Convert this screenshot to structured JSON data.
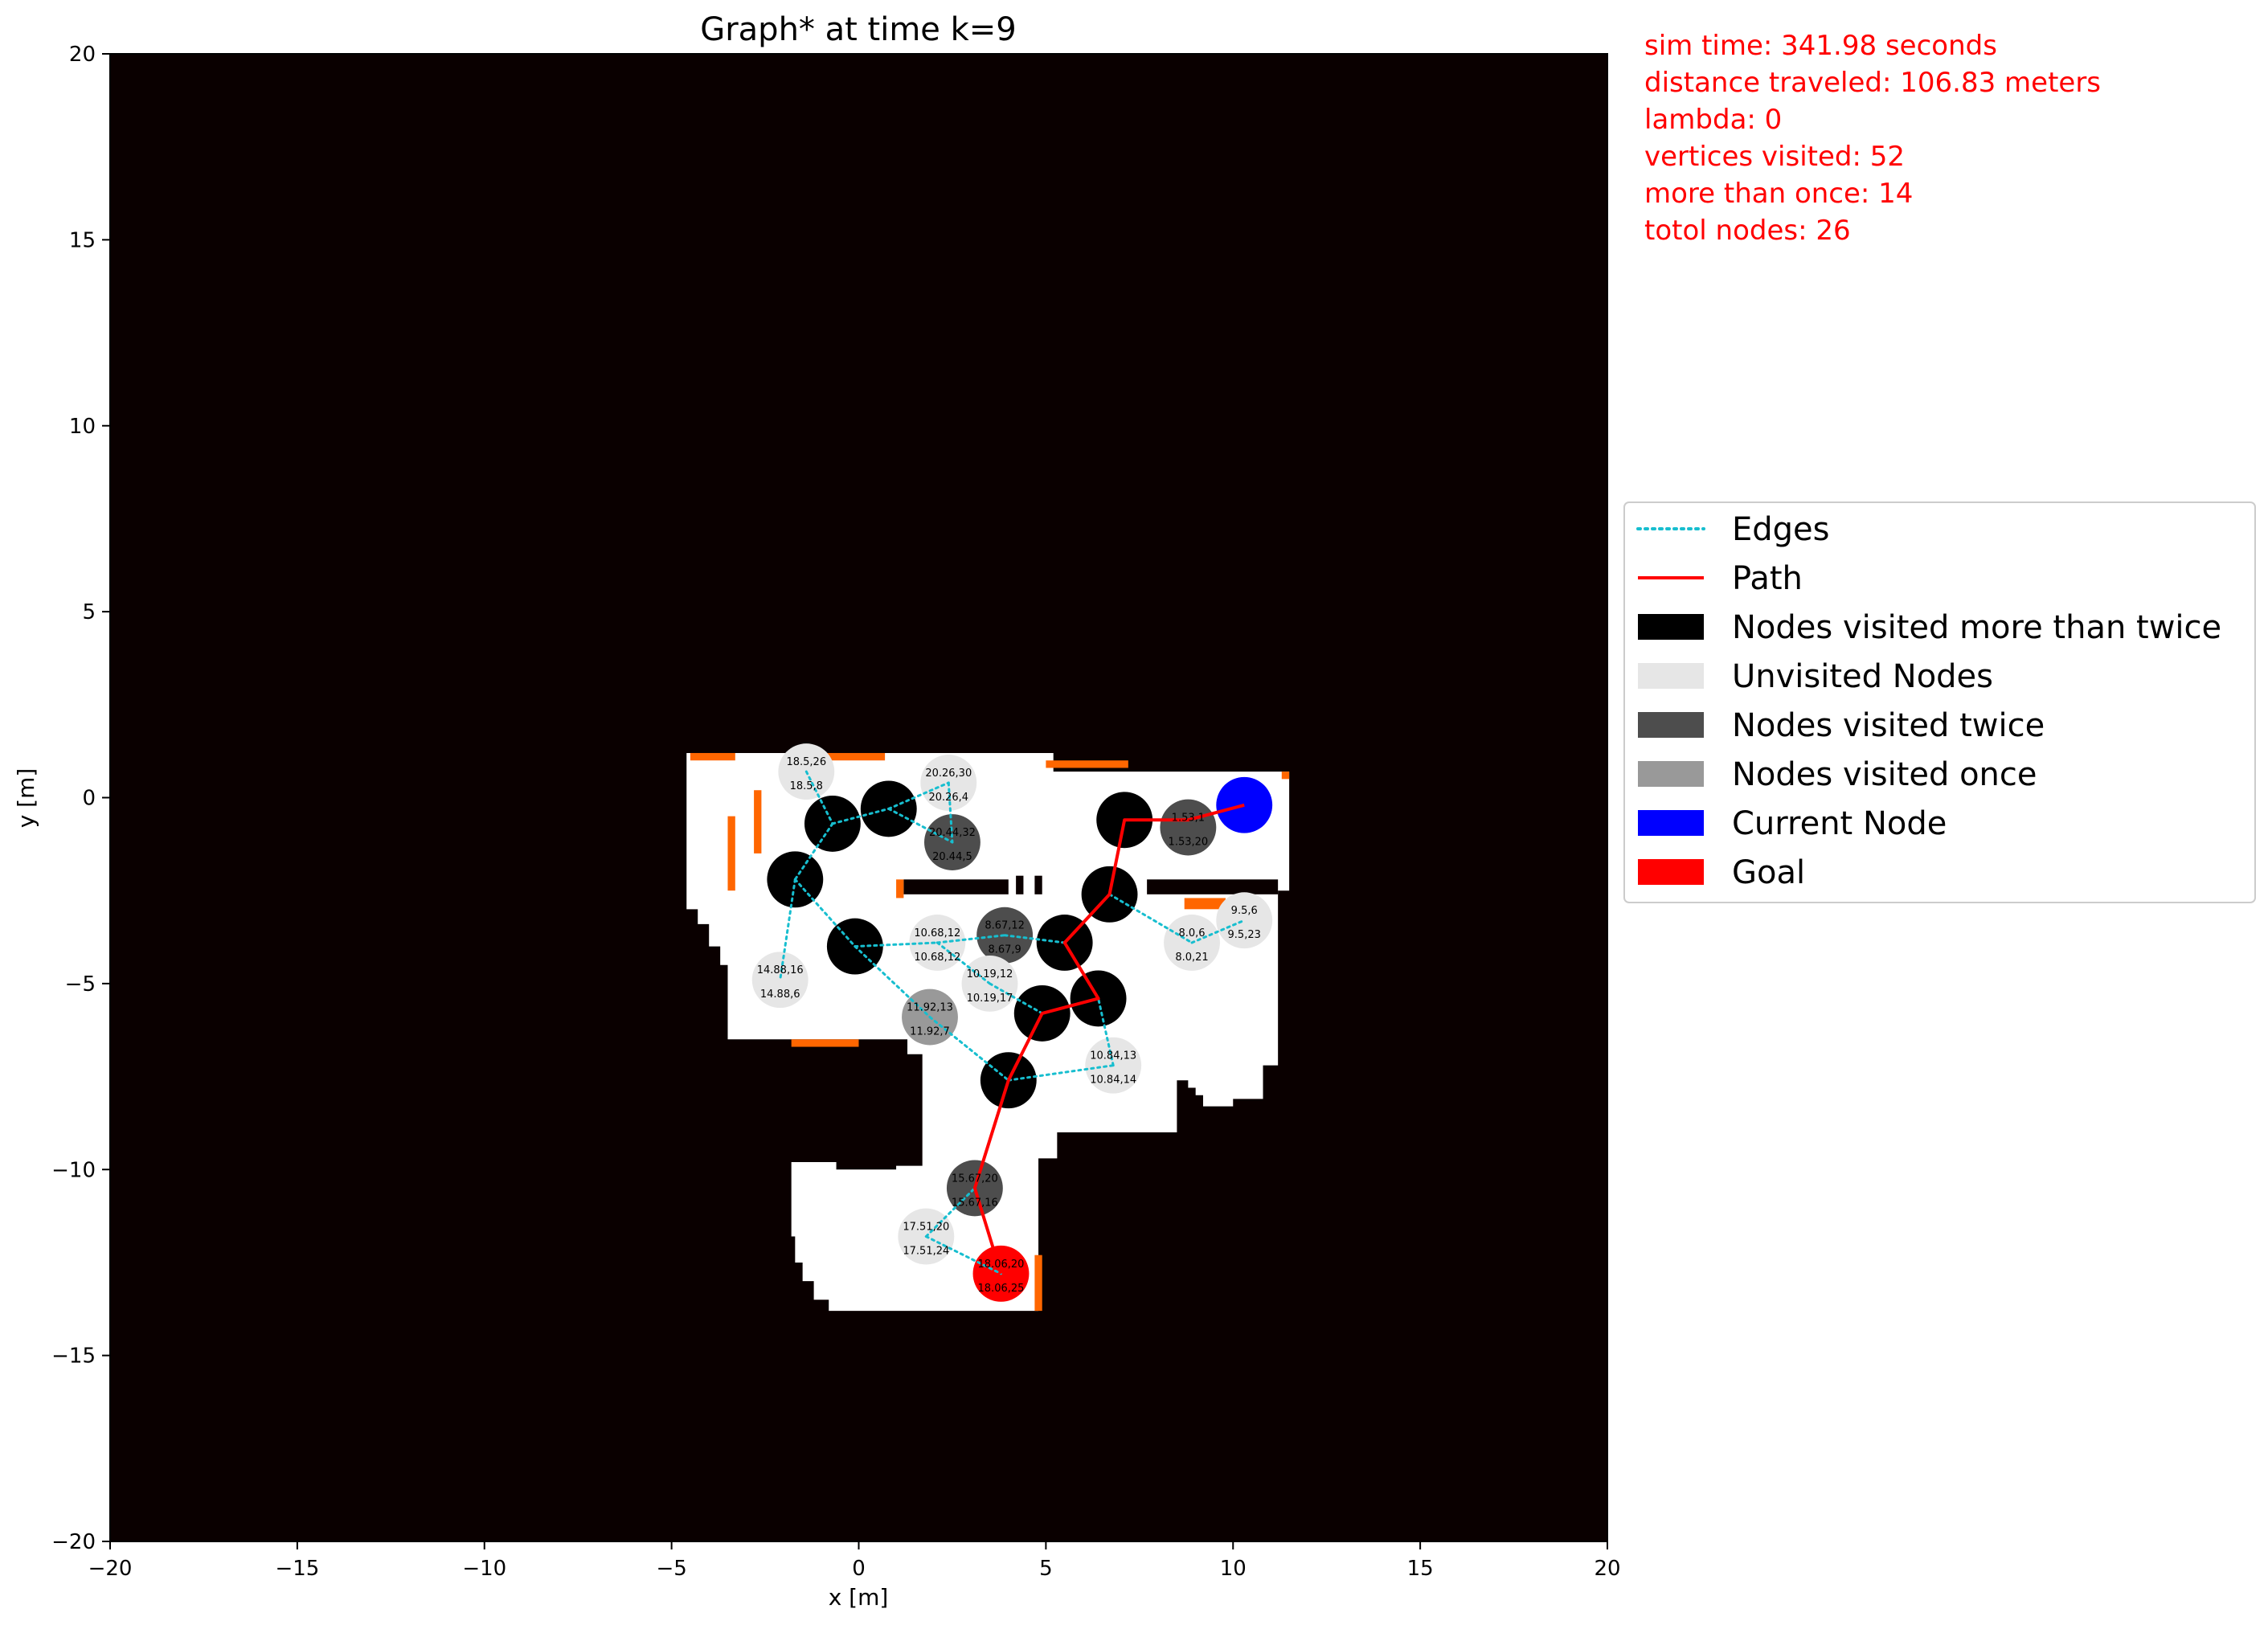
{
  "chart_data": {
    "type": "scatter",
    "title": "Graph* at time k=9",
    "xlabel": "x [m]",
    "ylabel": "y [m]",
    "xlim": [
      -20,
      20
    ],
    "ylim": [
      -20,
      20
    ],
    "xticks": [
      "−20",
      "−15",
      "−10",
      "−5",
      "0",
      "5",
      "10",
      "15",
      "20"
    ],
    "yticks": [
      "−20",
      "−15",
      "−10",
      "−5",
      "0",
      "5",
      "10",
      "15",
      "20"
    ],
    "grid": false,
    "legend_position": "right",
    "info": [
      "sim time: 341.98 seconds",
      "distance traveled: 106.83 meters",
      "lambda: 0",
      "vertices visited: 52",
      "more than once: 14",
      "totol nodes: 26"
    ],
    "legend": [
      {
        "label": "Edges",
        "kind": "dotted-line",
        "color": "#17becf"
      },
      {
        "label": "Path",
        "kind": "line",
        "color": "#ff0000"
      },
      {
        "label": "Nodes visited more than twice",
        "kind": "patch",
        "color": "#000000"
      },
      {
        "label": "Unvisited Nodes",
        "kind": "patch",
        "color": "#e6e6e6"
      },
      {
        "label": "Nodes visited twice",
        "kind": "patch",
        "color": "#4d4d4d"
      },
      {
        "label": "Nodes visited once",
        "kind": "patch",
        "color": "#999999"
      },
      {
        "label": "Current Node",
        "kind": "patch",
        "color": "#0000ff"
      },
      {
        "label": "Goal",
        "kind": "patch",
        "color": "#ff0000"
      }
    ],
    "colors": {
      "background": "#0a0000",
      "free_space": "#ffffff",
      "frontier": "#ff6600",
      "edge": "#17becf",
      "path": "#ff0000"
    },
    "free_space_polygons": [
      [
        [
          -4.5,
          1.2
        ],
        [
          5.2,
          1.2
        ],
        [
          5.2,
          0.7
        ],
        [
          11.5,
          0.7
        ],
        [
          11.5,
          -2.5
        ],
        [
          11.2,
          -2.5
        ],
        [
          11.2,
          -7.2
        ],
        [
          10.8,
          -7.2
        ],
        [
          10.8,
          -8.1
        ],
        [
          10.0,
          -8.1
        ],
        [
          10.0,
          -8.3
        ],
        [
          9.2,
          -8.3
        ],
        [
          9.2,
          -8.0
        ],
        [
          9.0,
          -8.0
        ],
        [
          9.0,
          -7.8
        ],
        [
          8.8,
          -7.8
        ],
        [
          8.8,
          -7.6
        ],
        [
          8.5,
          -7.6
        ],
        [
          8.5,
          -9.0
        ],
        [
          5.3,
          -9.0
        ],
        [
          5.3,
          -9.7
        ],
        [
          4.8,
          -9.7
        ],
        [
          4.8,
          -13.8
        ],
        [
          -0.8,
          -13.8
        ],
        [
          -0.8,
          -13.5
        ],
        [
          -1.2,
          -13.5
        ],
        [
          -1.2,
          -13.0
        ],
        [
          -1.5,
          -13.0
        ],
        [
          -1.5,
          -12.5
        ],
        [
          -1.7,
          -12.5
        ],
        [
          -1.7,
          -11.8
        ],
        [
          -1.8,
          -11.8
        ],
        [
          -1.8,
          -9.8
        ],
        [
          -0.6,
          -9.8
        ],
        [
          -0.6,
          -10.0
        ],
        [
          1.0,
          -10.0
        ],
        [
          1.0,
          -9.9
        ],
        [
          1.7,
          -9.9
        ],
        [
          1.7,
          -6.9
        ],
        [
          1.3,
          -6.9
        ],
        [
          1.3,
          -6.5
        ],
        [
          -3.5,
          -6.5
        ],
        [
          -3.5,
          -4.5
        ],
        [
          -3.7,
          -4.5
        ],
        [
          -3.7,
          -4.0
        ],
        [
          -4.0,
          -4.0
        ],
        [
          -4.0,
          -3.4
        ],
        [
          -4.3,
          -3.4
        ],
        [
          -4.3,
          -3.0
        ],
        [
          -4.6,
          -3.0
        ],
        [
          -4.6,
          1.2
        ]
      ]
    ],
    "obstacle_rects": [
      [
        [
          1.2,
          -2.2
        ],
        [
          4.0,
          -2.6
        ]
      ],
      [
        [
          7.7,
          -2.2
        ],
        [
          11.2,
          -2.6
        ]
      ],
      [
        [
          4.2,
          -2.1
        ],
        [
          4.4,
          -2.6
        ]
      ],
      [
        [
          4.7,
          -2.1
        ],
        [
          4.9,
          -2.6
        ]
      ]
    ],
    "frontier_rects": [
      [
        [
          -4.5,
          1.2
        ],
        [
          -3.3,
          1.0
        ]
      ],
      [
        [
          -1.4,
          1.2
        ],
        [
          0.7,
          1.0
        ]
      ],
      [
        [
          5.0,
          1.0
        ],
        [
          7.2,
          0.8
        ]
      ],
      [
        [
          11.3,
          0.7
        ],
        [
          11.5,
          0.5
        ]
      ],
      [
        [
          -2.8,
          0.2
        ],
        [
          -2.6,
          -1.5
        ]
      ],
      [
        [
          -3.5,
          -0.5
        ],
        [
          -3.3,
          -2.5
        ]
      ],
      [
        [
          -1.8,
          -6.5
        ],
        [
          0.0,
          -6.7
        ]
      ],
      [
        [
          1.0,
          -2.2
        ],
        [
          1.2,
          -2.7
        ]
      ],
      [
        [
          8.7,
          -2.7
        ],
        [
          9.8,
          -3.0
        ]
      ],
      [
        [
          4.7,
          -12.3
        ],
        [
          4.9,
          -13.8
        ]
      ]
    ],
    "nodes": [
      {
        "x": -1.4,
        "y": 0.7,
        "status": "unvisited",
        "label_top": "18.5,26",
        "label_bottom": "18.5,8"
      },
      {
        "x": 2.4,
        "y": 0.4,
        "status": "unvisited",
        "label_top": "20.26,30",
        "label_bottom": "20.26,4"
      },
      {
        "x": 2.5,
        "y": -1.2,
        "status": "twice",
        "label_top": "20.44,32",
        "label_bottom": "20.44,5"
      },
      {
        "x": -0.7,
        "y": -0.7,
        "status": "more_than_twice",
        "label_top": "",
        "label_bottom": ""
      },
      {
        "x": 0.8,
        "y": -0.3,
        "status": "more_than_twice",
        "label_top": "",
        "label_bottom": ""
      },
      {
        "x": -1.7,
        "y": -2.2,
        "status": "more_than_twice",
        "label_top": "",
        "label_bottom": ""
      },
      {
        "x": -0.1,
        "y": -4.0,
        "status": "more_than_twice",
        "label_top": "",
        "label_bottom": ""
      },
      {
        "x": -2.1,
        "y": -4.9,
        "status": "unvisited",
        "label_top": "14.88,16",
        "label_bottom": "14.88,6"
      },
      {
        "x": 2.1,
        "y": -3.9,
        "status": "unvisited",
        "label_top": "10.68,12",
        "label_bottom": "10.68,12"
      },
      {
        "x": 3.9,
        "y": -3.7,
        "status": "twice",
        "label_top": "8.67,12",
        "label_bottom": "8.67,9"
      },
      {
        "x": 3.5,
        "y": -5.0,
        "status": "unvisited",
        "label_top": "10.19,12",
        "label_bottom": "10.19,17"
      },
      {
        "x": 1.9,
        "y": -5.9,
        "status": "once",
        "label_top": "11.92,13",
        "label_bottom": "11.92,7"
      },
      {
        "x": 5.5,
        "y": -3.9,
        "status": "more_than_twice",
        "label_top": "",
        "label_bottom": ""
      },
      {
        "x": 4.9,
        "y": -5.8,
        "status": "more_than_twice",
        "label_top": "",
        "label_bottom": ""
      },
      {
        "x": 6.4,
        "y": -5.4,
        "status": "more_than_twice",
        "label_top": "",
        "label_bottom": ""
      },
      {
        "x": 6.7,
        "y": -2.6,
        "status": "more_than_twice",
        "label_top": "",
        "label_bottom": ""
      },
      {
        "x": 7.1,
        "y": -0.6,
        "status": "more_than_twice",
        "label_top": "",
        "label_bottom": ""
      },
      {
        "x": 8.8,
        "y": -0.8,
        "status": "twice",
        "label_top": "1.53,1",
        "label_bottom": "1.53,20"
      },
      {
        "x": 8.9,
        "y": -3.9,
        "status": "unvisited",
        "label_top": "8.0,6",
        "label_bottom": "8.0,21"
      },
      {
        "x": 10.3,
        "y": -3.3,
        "status": "unvisited",
        "label_top": "9.5,6",
        "label_bottom": "9.5,23"
      },
      {
        "x": 6.8,
        "y": -7.2,
        "status": "unvisited",
        "label_top": "10.84,13",
        "label_bottom": "10.84,14"
      },
      {
        "x": 4.0,
        "y": -7.6,
        "status": "more_than_twice",
        "label_top": "",
        "label_bottom": ""
      },
      {
        "x": 3.1,
        "y": -10.5,
        "status": "twice",
        "label_top": "15.67,20",
        "label_bottom": "15.67,16"
      },
      {
        "x": 1.8,
        "y": -11.8,
        "status": "unvisited",
        "label_top": "17.51,20",
        "label_bottom": "17.51,24"
      },
      {
        "x": 3.8,
        "y": -12.8,
        "status": "goal",
        "label_top": "18.06,20",
        "label_bottom": "18.06,25"
      },
      {
        "x": 10.3,
        "y": -0.2,
        "status": "current",
        "label_top": "",
        "label_bottom": ""
      }
    ],
    "edges": [
      [
        [
          -1.4,
          0.7
        ],
        [
          -0.7,
          -0.7
        ]
      ],
      [
        [
          -0.7,
          -0.7
        ],
        [
          0.8,
          -0.3
        ]
      ],
      [
        [
          0.8,
          -0.3
        ],
        [
          2.4,
          0.4
        ]
      ],
      [
        [
          2.4,
          0.4
        ],
        [
          2.5,
          -1.2
        ]
      ],
      [
        [
          0.8,
          -0.3
        ],
        [
          2.5,
          -1.2
        ]
      ],
      [
        [
          -0.7,
          -0.7
        ],
        [
          -1.7,
          -2.2
        ]
      ],
      [
        [
          -1.7,
          -2.2
        ],
        [
          -2.1,
          -4.9
        ]
      ],
      [
        [
          -1.7,
          -2.2
        ],
        [
          -0.1,
          -4.0
        ]
      ],
      [
        [
          -0.1,
          -4.0
        ],
        [
          2.1,
          -3.9
        ]
      ],
      [
        [
          2.1,
          -3.9
        ],
        [
          3.9,
          -3.7
        ]
      ],
      [
        [
          3.9,
          -3.7
        ],
        [
          5.5,
          -3.9
        ]
      ],
      [
        [
          2.1,
          -3.9
        ],
        [
          3.5,
          -5.0
        ]
      ],
      [
        [
          -0.1,
          -4.0
        ],
        [
          1.9,
          -5.9
        ]
      ],
      [
        [
          1.9,
          -5.9
        ],
        [
          4.0,
          -7.6
        ]
      ],
      [
        [
          3.5,
          -5.0
        ],
        [
          4.9,
          -5.8
        ]
      ],
      [
        [
          4.0,
          -7.6
        ],
        [
          6.8,
          -7.2
        ]
      ],
      [
        [
          6.8,
          -7.2
        ],
        [
          6.4,
          -5.4
        ]
      ],
      [
        [
          6.7,
          -2.6
        ],
        [
          8.9,
          -3.9
        ]
      ],
      [
        [
          8.9,
          -3.9
        ],
        [
          10.3,
          -3.3
        ]
      ],
      [
        [
          1.8,
          -11.8
        ],
        [
          3.1,
          -10.5
        ]
      ],
      [
        [
          1.8,
          -11.8
        ],
        [
          3.8,
          -12.8
        ]
      ]
    ],
    "path": [
      [
        3.8,
        -12.8
      ],
      [
        3.1,
        -10.5
      ],
      [
        4.0,
        -7.6
      ],
      [
        4.9,
        -5.8
      ],
      [
        6.4,
        -5.4
      ],
      [
        5.5,
        -3.9
      ],
      [
        6.7,
        -2.6
      ],
      [
        7.1,
        -0.6
      ],
      [
        8.8,
        -0.6
      ],
      [
        10.3,
        -0.2
      ]
    ],
    "node_radius_m": 0.75
  }
}
